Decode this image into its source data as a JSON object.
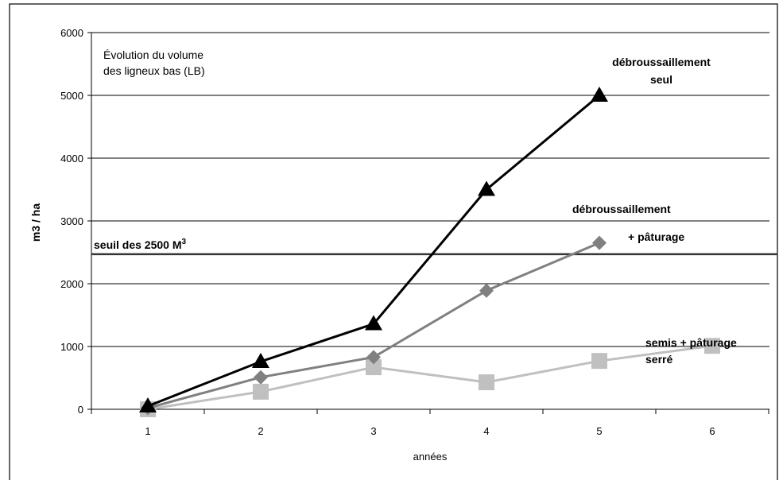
{
  "chart_data": {
    "type": "line",
    "title_line1": "Évolution  du  volume",
    "title_line2": "des ligneux bas (LB)",
    "xlabel": "années",
    "ylabel": "m3 / ha",
    "x": [
      1,
      2,
      3,
      4,
      5,
      6
    ],
    "x_ticks": [
      "1",
      "2",
      "3",
      "4",
      "5",
      "6"
    ],
    "y_ticks": [
      "0",
      "1000",
      "2000",
      "3000",
      "4000",
      "5000",
      "6000"
    ],
    "ylim": [
      0,
      6000
    ],
    "grid": true,
    "threshold": {
      "value": 2470,
      "label": "seuil des 2500 M",
      "sup": "3"
    },
    "series": [
      {
        "name_line1": "débroussaillement",
        "name_line2": "seul",
        "marker": "triangle",
        "color": "#000000",
        "x": [
          1,
          2,
          3,
          4,
          5
        ],
        "values": [
          50,
          760,
          1360,
          3500,
          5000
        ]
      },
      {
        "name_line1": "débroussaillement",
        "name_line2": "+ pâturage",
        "marker": "diamond",
        "color": "#808080",
        "x": [
          1,
          2,
          3,
          4,
          5
        ],
        "values": [
          20,
          510,
          830,
          1890,
          2650
        ]
      },
      {
        "name_line1": "semis + pâturage",
        "name_line2": "serré",
        "marker": "square",
        "color": "#c0c0c0",
        "x": [
          1,
          2,
          3,
          4,
          5,
          6
        ],
        "values": [
          0,
          280,
          670,
          430,
          770,
          1010
        ]
      }
    ]
  }
}
